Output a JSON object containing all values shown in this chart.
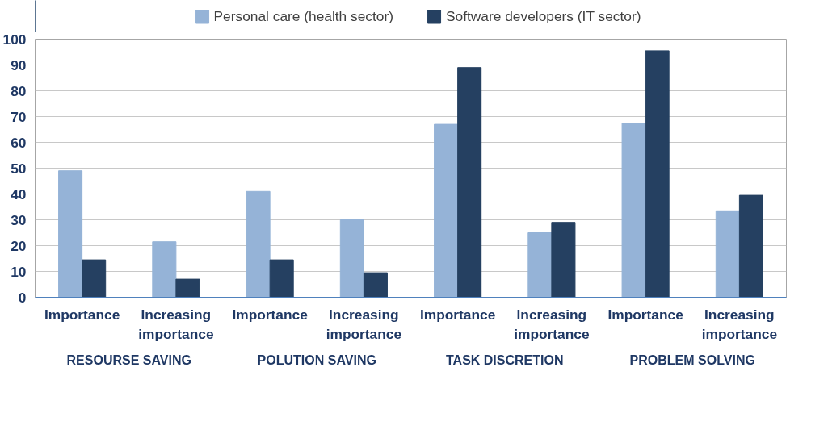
{
  "chart_data": {
    "type": "bar",
    "categories": [
      "Importance",
      "Increasing importance",
      "Importance",
      "Increasing importance",
      "Importance",
      "Increasing importance",
      "Importance",
      "Increasing importance"
    ],
    "annotations": [
      "RESOURSE SAVING",
      "POLUTION SAVING",
      "TASK DISCRETION",
      "PROBLEM SOLVING"
    ],
    "series": [
      {
        "name": "Personal care (health sector)",
        "color": "#95b3d7",
        "values": [
          49,
          21.5,
          41,
          30,
          67,
          25,
          67.5,
          33.5
        ]
      },
      {
        "name": "Software developers (IT sector)",
        "color": "#254061",
        "values": [
          14.5,
          7,
          14.5,
          9.5,
          89,
          29,
          95.5,
          39.5
        ]
      }
    ],
    "ylim": [
      0,
      100
    ],
    "yticks": [
      0,
      10,
      20,
      30,
      40,
      50,
      60,
      70,
      80,
      90,
      100
    ],
    "grid": "y",
    "legend": "top"
  }
}
